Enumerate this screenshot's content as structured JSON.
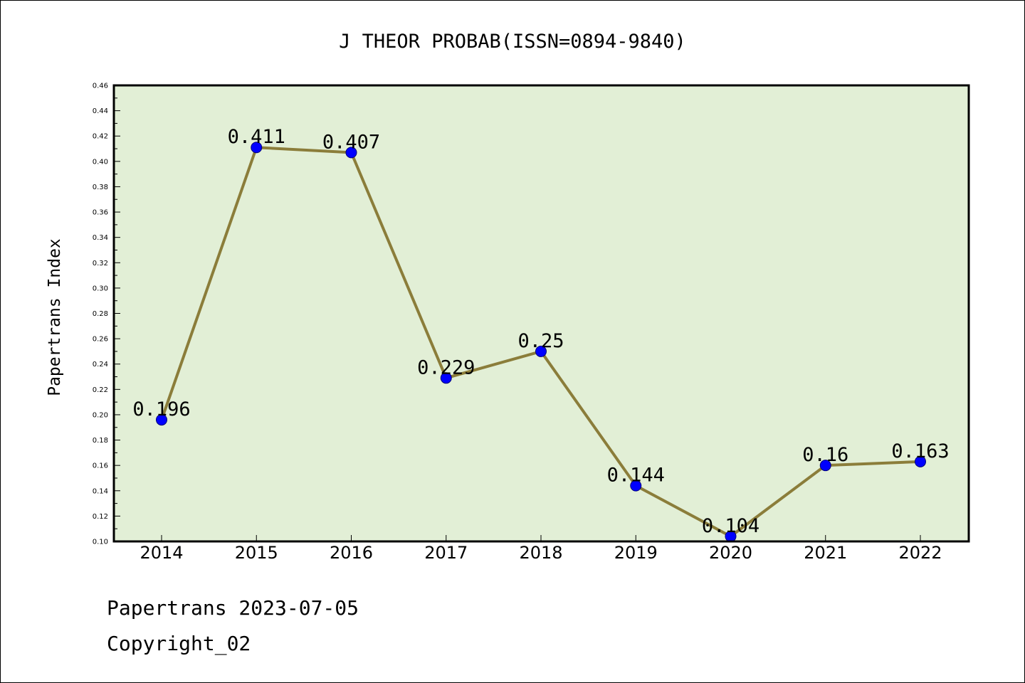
{
  "chart_data": {
    "type": "line",
    "title": "J THEOR PROBAB(ISSN=0894-9840)",
    "xlabel": "",
    "ylabel": "Papertrans Index",
    "categories": [
      "2014",
      "2015",
      "2016",
      "2017",
      "2018",
      "2019",
      "2020",
      "2021",
      "2022"
    ],
    "series": [
      {
        "name": "Papertrans Index",
        "values": [
          0.196,
          0.411,
          0.407,
          0.229,
          0.25,
          0.144,
          0.104,
          0.16,
          0.163
        ],
        "labels": [
          "0.196",
          "0.411",
          "0.407",
          "0.229",
          "0.25",
          "0.144",
          "0.104",
          "0.16",
          "0.163"
        ]
      }
    ],
    "ylim": [
      0.1,
      0.46
    ],
    "yticks": [
      "0.10",
      "0.12",
      "0.14",
      "0.16",
      "0.18",
      "0.20",
      "0.22",
      "0.24",
      "0.26",
      "0.28",
      "0.30",
      "0.32",
      "0.34",
      "0.36",
      "0.38",
      "0.40",
      "0.42",
      "0.44",
      "0.46"
    ],
    "grid": false,
    "colors": {
      "plot_background": "#e2efd6",
      "line": "#8b7d3a",
      "marker": "#0000ff",
      "marker_edge": "#00007a"
    }
  },
  "footer": {
    "line1": "Papertrans 2023-07-05",
    "line2": "Copyright_02"
  }
}
